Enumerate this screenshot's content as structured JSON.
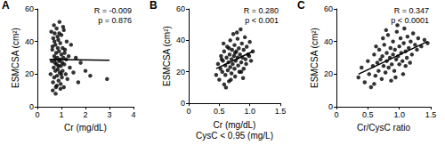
{
  "chart_data": [
    {
      "type": "scatter",
      "title": "A",
      "xlabel": "Cr (mg/dL)",
      "ylabel": "ESMCSA (cm²)",
      "annotations": [
        "R = -0.009",
        "p = 0.876"
      ],
      "x": [
        0.55,
        0.6,
        0.62,
        0.65,
        0.66,
        0.68,
        0.7,
        0.7,
        0.72,
        0.73,
        0.75,
        0.75,
        0.77,
        0.78,
        0.8,
        0.8,
        0.82,
        0.83,
        0.85,
        0.85,
        0.87,
        0.88,
        0.9,
        0.9,
        0.92,
        0.93,
        0.95,
        0.95,
        0.97,
        0.98,
        1.0,
        1.0,
        1.02,
        1.03,
        1.05,
        1.05,
        1.08,
        1.1,
        1.1,
        1.12,
        1.15,
        1.18,
        1.2,
        1.22,
        1.25,
        1.3,
        1.35,
        1.4,
        1.5,
        1.6,
        1.7,
        1.8,
        2.0,
        2.2,
        2.9,
        0.58,
        0.64,
        0.69,
        0.76,
        0.84,
        0.96,
        1.07,
        0.63,
        0.74,
        0.88,
        0.99,
        1.13,
        0.71,
        0.81,
        0.91
      ],
      "values": [
        20,
        28,
        35,
        15,
        42,
        24,
        31,
        18,
        45,
        27,
        22,
        38,
        12,
        33,
        26,
        48,
        19,
        30,
        36,
        23,
        41,
        16,
        28,
        34,
        52,
        21,
        29,
        39,
        14,
        25,
        32,
        44,
        18,
        27,
        36,
        22,
        30,
        47,
        12,
        26,
        35,
        20,
        29,
        40,
        17,
        31,
        24,
        38,
        21,
        30,
        15,
        27,
        22,
        19,
        17,
        46,
        10,
        50,
        8,
        43,
        11,
        49,
        37,
        29,
        25,
        20,
        33,
        40,
        13,
        45
      ],
      "fit": {
        "x": [
          0.5,
          3
        ],
        "y": [
          29,
          28.5
        ]
      },
      "xlim": [
        0,
        4
      ],
      "xticks": [
        0,
        1,
        2,
        3,
        4
      ],
      "ylim": [
        0,
        60
      ],
      "yticks": [
        0,
        20,
        40,
        60
      ],
      "color": "#000000",
      "marker": "circle",
      "grid": false
    },
    {
      "type": "scatter",
      "title": "B",
      "xlabel": "Cr (mg/dL)\nCysC < 0.95 (mg/L)",
      "ylabel": "ESMCSA (cm²)",
      "annotations": [
        "R = 0.280",
        "p < 0.001"
      ],
      "x": [
        0.45,
        0.48,
        0.5,
        0.52,
        0.53,
        0.55,
        0.56,
        0.58,
        0.58,
        0.6,
        0.6,
        0.62,
        0.63,
        0.64,
        0.65,
        0.66,
        0.67,
        0.68,
        0.68,
        0.7,
        0.7,
        0.71,
        0.72,
        0.73,
        0.74,
        0.75,
        0.75,
        0.76,
        0.77,
        0.78,
        0.8,
        0.8,
        0.81,
        0.82,
        0.83,
        0.84,
        0.85,
        0.86,
        0.87,
        0.88,
        0.9,
        0.9,
        0.92,
        0.93,
        0.95,
        0.97,
        1.0,
        1.02,
        1.05,
        0.57,
        0.61,
        0.69,
        0.79,
        0.89,
        0.94,
        0.54,
        0.66,
        0.76,
        0.86,
        0.99
      ],
      "values": [
        18,
        25,
        15,
        22,
        30,
        20,
        27,
        12,
        33,
        24,
        18,
        29,
        36,
        21,
        26,
        14,
        31,
        23,
        40,
        28,
        19,
        34,
        25,
        44,
        30,
        22,
        37,
        17,
        27,
        33,
        29,
        41,
        24,
        35,
        20,
        31,
        47,
        26,
        38,
        29,
        34,
        22,
        42,
        28,
        36,
        31,
        39,
        27,
        33,
        38,
        10,
        15,
        45,
        16,
        25,
        28,
        35,
        32,
        20,
        30
      ],
      "fit": {
        "x": [
          0.45,
          1.05
        ],
        "y": [
          22,
          33
        ]
      },
      "xlim": [
        0,
        1.5
      ],
      "xticks": [
        0,
        0.5,
        {
          "value": 1,
          "label": "1.0"
        },
        1.5
      ],
      "ylim": [
        0,
        60
      ],
      "yticks": [
        0,
        20,
        40,
        60
      ],
      "color": "#000000",
      "marker": "circle",
      "grid": false
    },
    {
      "type": "scatter",
      "title": "C",
      "xlabel": "Cr/CysC ratio",
      "ylabel": "ESMCSA (cm²)",
      "annotations": [
        "R = 0.347",
        "p < 0.0001"
      ],
      "x": [
        0.35,
        0.4,
        0.45,
        0.5,
        0.52,
        0.55,
        0.58,
        0.6,
        0.62,
        0.65,
        0.67,
        0.68,
        0.7,
        0.72,
        0.73,
        0.75,
        0.76,
        0.78,
        0.8,
        0.8,
        0.82,
        0.83,
        0.85,
        0.86,
        0.88,
        0.9,
        0.9,
        0.92,
        0.93,
        0.95,
        0.96,
        0.98,
        1.0,
        1.0,
        1.02,
        1.03,
        1.05,
        1.07,
        1.08,
        1.1,
        1.12,
        1.13,
        1.15,
        1.18,
        1.2,
        1.22,
        1.25,
        1.28,
        1.3,
        1.35,
        1.4,
        1.45,
        0.6,
        0.74,
        0.87,
        0.97,
        1.06,
        1.17,
        0.63,
        0.79,
        0.94,
        1.1
      ],
      "values": [
        18,
        24,
        15,
        28,
        20,
        12,
        25,
        32,
        19,
        27,
        22,
        35,
        29,
        17,
        31,
        25,
        38,
        21,
        33,
        28,
        44,
        24,
        30,
        36,
        26,
        40,
        32,
        22,
        35,
        29,
        46,
        31,
        37,
        26,
        42,
        33,
        28,
        39,
        48,
        34,
        30,
        43,
        36,
        40,
        32,
        45,
        38,
        35,
        42,
        37,
        41,
        39,
        14,
        42,
        16,
        50,
        20,
        27,
        37,
        47,
        18,
        25
      ],
      "fit": {
        "x": [
          0.35,
          1.45
        ],
        "y": [
          20,
          40
        ]
      },
      "xlim": [
        0,
        1.5
      ],
      "xticks": [
        0,
        0.5,
        {
          "value": 1,
          "label": "1.0"
        },
        1.5
      ],
      "ylim": [
        0,
        60
      ],
      "yticks": [
        0,
        20,
        40,
        60
      ],
      "color": "#000000",
      "marker": "circle",
      "grid": false
    }
  ]
}
